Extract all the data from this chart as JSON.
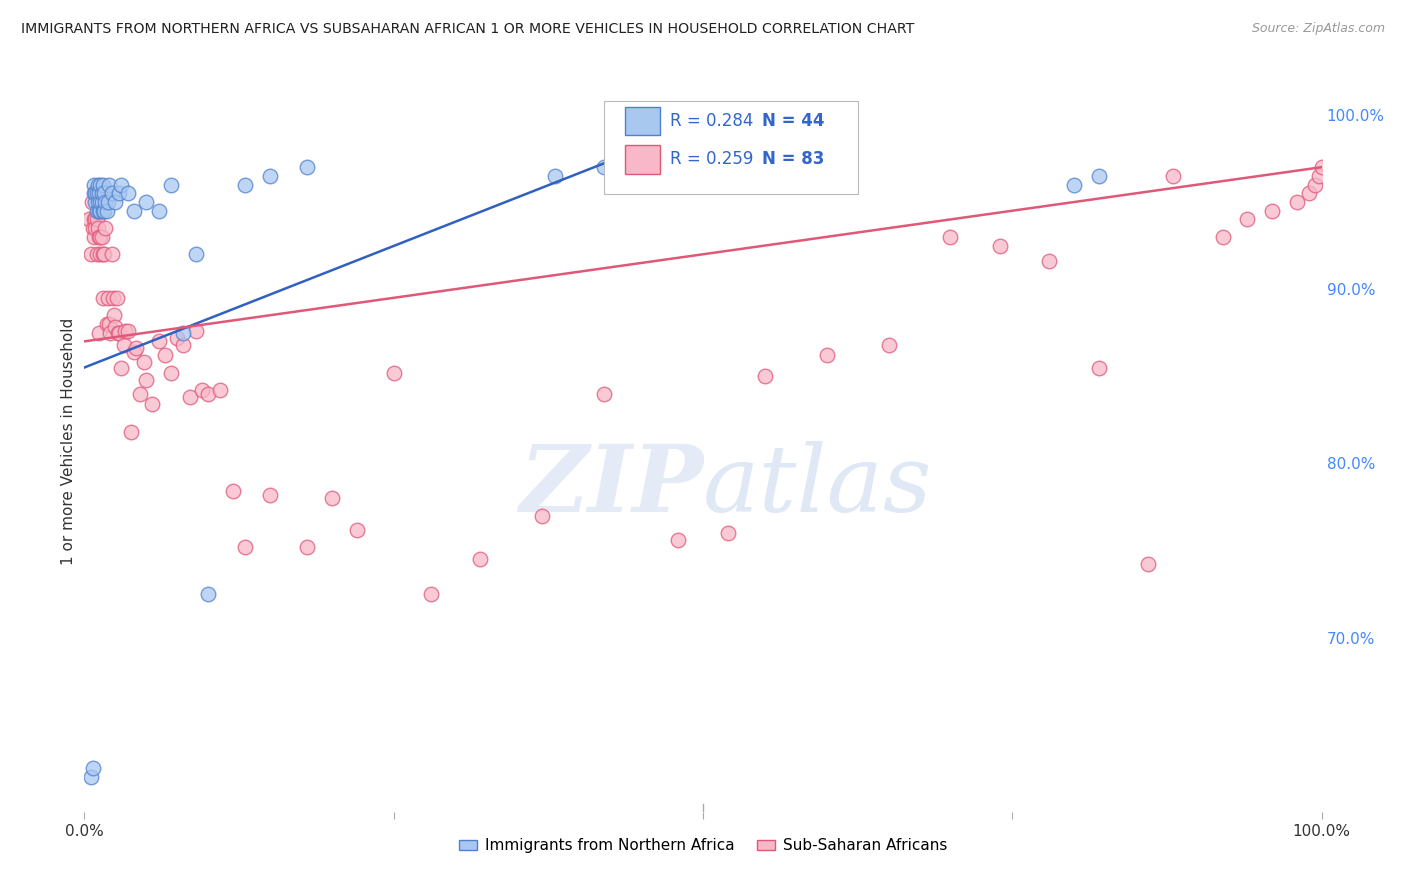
{
  "title": "IMMIGRANTS FROM NORTHERN AFRICA VS SUBSAHARAN AFRICAN 1 OR MORE VEHICLES IN HOUSEHOLD CORRELATION CHART",
  "source": "Source: ZipAtlas.com",
  "ylabel": "1 or more Vehicles in Household",
  "ylabel_right_labels": [
    "70.0%",
    "80.0%",
    "90.0%",
    "100.0%"
  ],
  "ylabel_right_values": [
    0.7,
    0.8,
    0.9,
    1.0
  ],
  "legend_blue_R": "R = 0.284",
  "legend_blue_N": "N = 44",
  "legend_pink_R": "R = 0.259",
  "legend_pink_N": "N = 83",
  "legend_blue_label": "Immigrants from Northern Africa",
  "legend_pink_label": "Sub-Saharan Africans",
  "blue_color": "#A8C8F0",
  "pink_color": "#F8B8C8",
  "blue_edge_color": "#5080D0",
  "pink_edge_color": "#E05878",
  "blue_line_color": "#3060C0",
  "pink_line_color": "#E05878",
  "watermark_color": "#D0DCF0",
  "background_color": "#FFFFFF",
  "grid_color": "#CCCCCC",
  "xlim": [
    0.0,
    1.0
  ],
  "ylim": [
    0.6,
    1.025
  ],
  "blue_x": [
    0.005,
    0.007,
    0.008,
    0.008,
    0.009,
    0.009,
    0.01,
    0.01,
    0.011,
    0.011,
    0.012,
    0.012,
    0.013,
    0.013,
    0.013,
    0.014,
    0.014,
    0.015,
    0.015,
    0.016,
    0.016,
    0.017,
    0.018,
    0.019,
    0.02,
    0.022,
    0.025,
    0.028,
    0.03,
    0.035,
    0.04,
    0.05,
    0.06,
    0.07,
    0.08,
    0.09,
    0.1,
    0.13,
    0.15,
    0.18,
    0.38,
    0.42,
    0.8,
    0.82
  ],
  "blue_y": [
    0.62,
    0.625,
    0.96,
    0.955,
    0.95,
    0.955,
    0.945,
    0.955,
    0.95,
    0.96,
    0.945,
    0.955,
    0.945,
    0.95,
    0.96,
    0.95,
    0.955,
    0.945,
    0.96,
    0.945,
    0.955,
    0.95,
    0.945,
    0.95,
    0.96,
    0.955,
    0.95,
    0.955,
    0.96,
    0.955,
    0.945,
    0.95,
    0.945,
    0.96,
    0.875,
    0.92,
    0.725,
    0.96,
    0.965,
    0.97,
    0.965,
    0.97,
    0.96,
    0.965
  ],
  "pink_x": [
    0.004,
    0.005,
    0.006,
    0.007,
    0.008,
    0.008,
    0.009,
    0.009,
    0.01,
    0.01,
    0.011,
    0.011,
    0.012,
    0.012,
    0.013,
    0.013,
    0.014,
    0.015,
    0.015,
    0.016,
    0.017,
    0.018,
    0.019,
    0.02,
    0.021,
    0.022,
    0.023,
    0.024,
    0.025,
    0.026,
    0.027,
    0.028,
    0.03,
    0.032,
    0.033,
    0.035,
    0.038,
    0.04,
    0.042,
    0.045,
    0.048,
    0.05,
    0.055,
    0.06,
    0.065,
    0.07,
    0.075,
    0.08,
    0.085,
    0.09,
    0.095,
    0.1,
    0.11,
    0.12,
    0.13,
    0.15,
    0.18,
    0.2,
    0.22,
    0.25,
    0.28,
    0.32,
    0.37,
    0.42,
    0.48,
    0.52,
    0.55,
    0.6,
    0.65,
    0.7,
    0.74,
    0.78,
    0.82,
    0.86,
    0.88,
    0.92,
    0.94,
    0.96,
    0.98,
    0.99,
    0.995,
    0.998,
    1.0
  ],
  "pink_y": [
    0.94,
    0.92,
    0.95,
    0.935,
    0.93,
    0.94,
    0.94,
    0.935,
    0.92,
    0.94,
    0.935,
    0.945,
    0.875,
    0.93,
    0.92,
    0.93,
    0.93,
    0.895,
    0.92,
    0.92,
    0.935,
    0.88,
    0.895,
    0.88,
    0.875,
    0.92,
    0.895,
    0.885,
    0.878,
    0.895,
    0.875,
    0.875,
    0.855,
    0.868,
    0.876,
    0.876,
    0.818,
    0.864,
    0.866,
    0.84,
    0.858,
    0.848,
    0.834,
    0.87,
    0.862,
    0.852,
    0.872,
    0.868,
    0.838,
    0.876,
    0.842,
    0.84,
    0.842,
    0.784,
    0.752,
    0.782,
    0.752,
    0.78,
    0.762,
    0.852,
    0.725,
    0.745,
    0.77,
    0.84,
    0.756,
    0.76,
    0.85,
    0.862,
    0.868,
    0.93,
    0.925,
    0.916,
    0.855,
    0.742,
    0.965,
    0.93,
    0.94,
    0.945,
    0.95,
    0.955,
    0.96,
    0.965,
    0.97
  ],
  "blue_line_x0": 0.0,
  "blue_line_x1": 0.43,
  "blue_line_y0": 0.855,
  "blue_line_y1": 0.975,
  "pink_line_x0": 0.0,
  "pink_line_x1": 1.0,
  "pink_line_y0": 0.87,
  "pink_line_y1": 0.97
}
